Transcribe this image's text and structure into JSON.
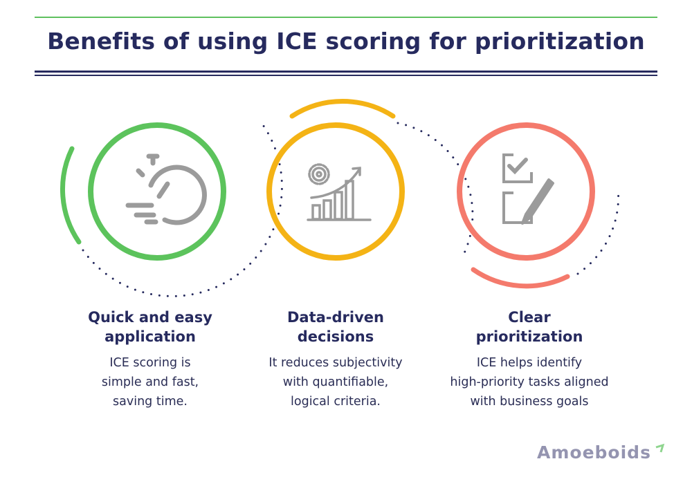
{
  "header": {
    "title": "Benefits of using ICE scoring for prioritization"
  },
  "colors": {
    "green": "#5cc35c",
    "yellow": "#f4b315",
    "red": "#f47a6c",
    "navy": "#262a5e",
    "icon_gray": "#9b9b9b"
  },
  "items": [
    {
      "icon": "stopwatch-icon",
      "title_line1": "Quick and easy",
      "title_line2": "application",
      "desc": [
        "ICE scoring is",
        "simple and fast,",
        "saving time."
      ]
    },
    {
      "icon": "gear-chart-icon",
      "title_line1": "Data-driven",
      "title_line2": "decisions",
      "desc": [
        "It reduces subjectivity",
        "with quantifiable,",
        "logical criteria."
      ]
    },
    {
      "icon": "checklist-pencil-icon",
      "title_line1": "Clear",
      "title_line2": "prioritization",
      "desc": [
        "ICE helps identify",
        "high-priority tasks aligned",
        "with business goals"
      ]
    }
  ],
  "footer": {
    "logo": "Amoeboids"
  }
}
